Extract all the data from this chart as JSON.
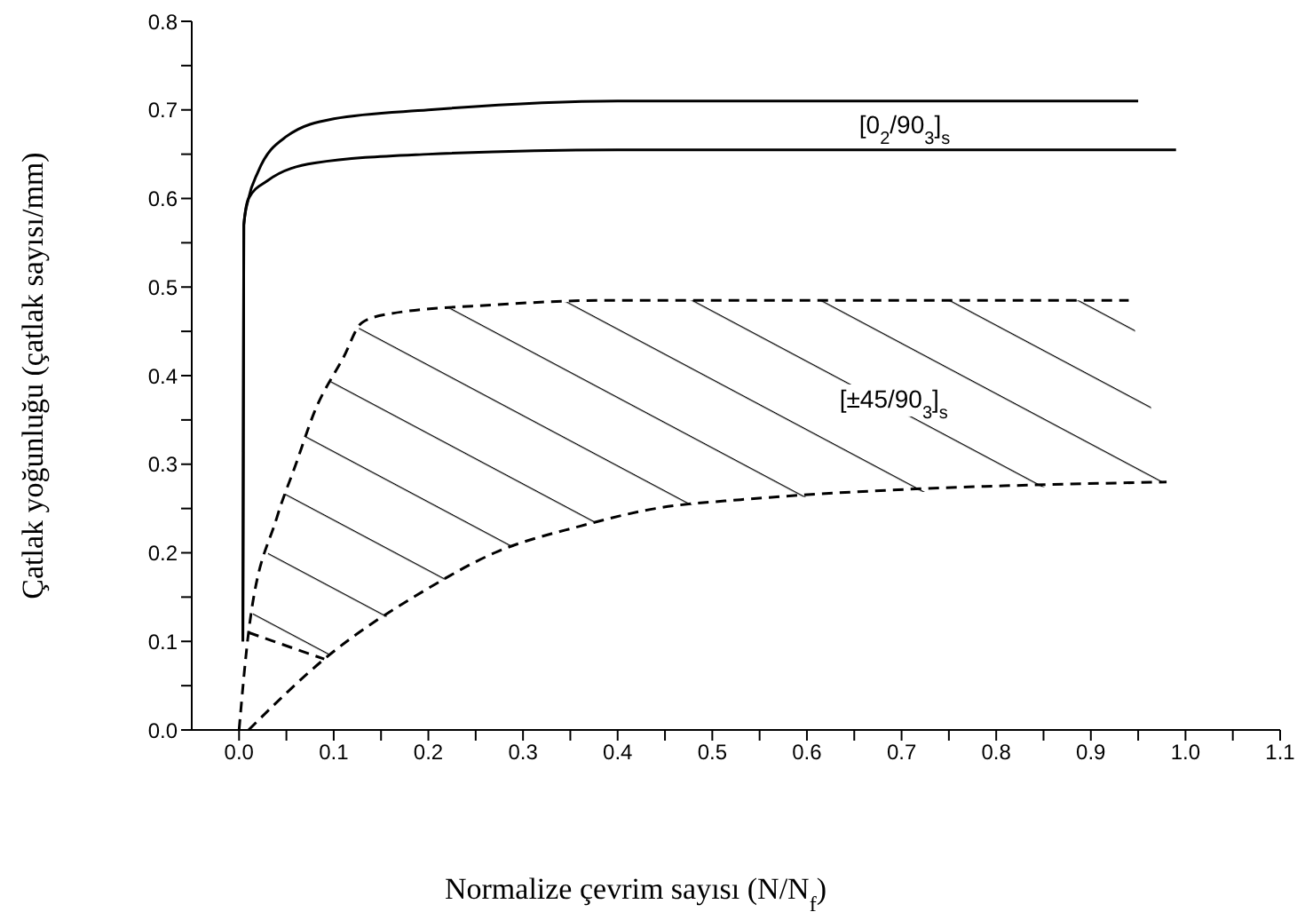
{
  "chart_data": {
    "type": "line",
    "xlabel": "Normalize çevrim sayısı (N/N$_{f}$)",
    "ylabel": "Çatlak yoğunluğu (çatlak sayısı/mm)",
    "xlim": [
      -0.05,
      1.1
    ],
    "xticks": [
      {
        "value": 0,
        "label": "0.0"
      },
      {
        "value": 0.05,
        "label": null
      },
      {
        "value": 0.1,
        "label": "0.1"
      },
      {
        "value": 0.15,
        "label": null
      },
      {
        "value": 0.2,
        "label": "0.2"
      },
      {
        "value": 0.25,
        "label": null
      },
      {
        "value": 0.3,
        "label": "0.3"
      },
      {
        "value": 0.35,
        "label": null
      },
      {
        "value": 0.4,
        "label": "0.4"
      },
      {
        "value": 0.45,
        "label": null
      },
      {
        "value": 0.5,
        "label": "0.5"
      },
      {
        "value": 0.55,
        "label": null
      },
      {
        "value": 0.6,
        "label": "0.6"
      },
      {
        "value": 0.65,
        "label": null
      },
      {
        "value": 0.7,
        "label": "0.7"
      },
      {
        "value": 0.75,
        "label": null
      },
      {
        "value": 0.8,
        "label": "0.8"
      },
      {
        "value": 0.85,
        "label": null
      },
      {
        "value": 0.9,
        "label": "0.9"
      },
      {
        "value": 0.95,
        "label": null
      },
      {
        "value": 1,
        "label": "1.0"
      },
      {
        "value": 1.05,
        "label": null
      },
      {
        "value": 1.1,
        "label": "1.1"
      }
    ],
    "ylim": [
      0,
      0.8
    ],
    "yticks": [
      {
        "value": 0,
        "label": "0.0"
      },
      {
        "value": 0.05,
        "label": null
      },
      {
        "value": 0.1,
        "label": "0.1"
      },
      {
        "value": 0.15,
        "label": null
      },
      {
        "value": 0.2,
        "label": "0.2"
      },
      {
        "value": 0.25,
        "label": null
      },
      {
        "value": 0.3,
        "label": "0.3"
      },
      {
        "value": 0.35,
        "label": null
      },
      {
        "value": 0.4,
        "label": "0.4"
      },
      {
        "value": 0.45,
        "label": null
      },
      {
        "value": 0.5,
        "label": "0.5"
      },
      {
        "value": 0.55,
        "label": null
      },
      {
        "value": 0.6,
        "label": "0.6"
      },
      {
        "value": 0.65,
        "label": null
      },
      {
        "value": 0.7,
        "label": "0.7"
      },
      {
        "value": 0.75,
        "label": null
      },
      {
        "value": 0.8,
        "label": "0.8"
      }
    ],
    "marker": "none",
    "series": [
      {
        "color": "#000000",
        "line_style": "solid",
        "x": [
          0.004,
          0.005,
          0.01,
          0.02,
          0.05,
          0.1,
          0.2,
          0.4,
          0.95
        ],
        "values": [
          0.1,
          0.57,
          0.6,
          0.63,
          0.67,
          0.69,
          0.7,
          0.71,
          0.71
        ]
      },
      {
        "color": "#000000",
        "line_style": "solid",
        "x": [
          0.004,
          0.005,
          0.01,
          0.03,
          0.08,
          0.2,
          0.4,
          0.99
        ],
        "values": [
          0.1,
          0.57,
          0.6,
          0.62,
          0.64,
          0.65,
          0.655,
          0.655
        ]
      },
      {
        "color": "#000000",
        "line_style": "dashed",
        "x": [
          0,
          0.01,
          0.04,
          0.06,
          0.08,
          0.11,
          0.13,
          0.16,
          0.27,
          0.39,
          0.94
        ],
        "values": [
          0,
          0.11,
          0.24,
          0.3,
          0.36,
          0.42,
          0.46,
          0.47,
          0.48,
          0.485,
          0.485
        ]
      },
      {
        "color": "#000000",
        "line_style": "dashed",
        "x": [
          0.01,
          0.09,
          0.2,
          0.27,
          0.36,
          0.44,
          0.53,
          0.98
        ],
        "values": [
          0,
          0.08,
          0.16,
          0.2,
          0.23,
          0.25,
          0.26,
          0.28
        ]
      },
      {
        "color": "#000000",
        "line_style": "dashed",
        "x": [
          0.01,
          0.09
        ],
        "values": [
          0.11,
          0.08
        ]
      }
    ],
    "annotations": [
      "[0$_{2}$/90$_{3}$]$_{s}$",
      "[±45/90$_{3}$]$_{s}$"
    ]
  }
}
